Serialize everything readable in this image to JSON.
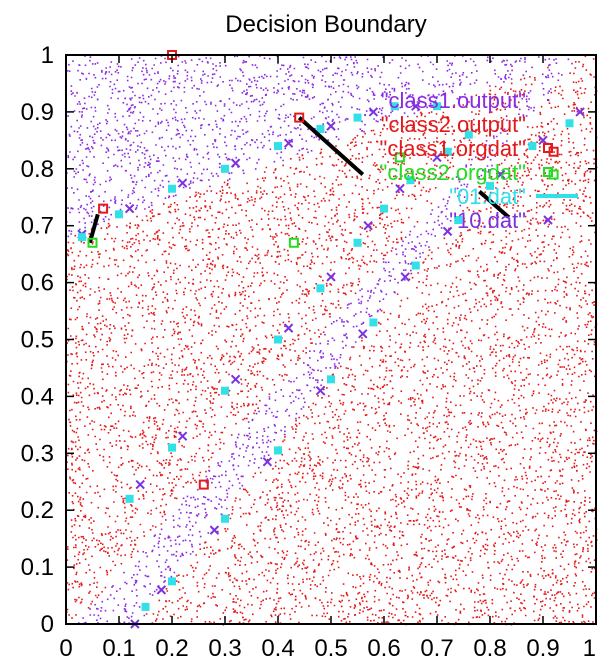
{
  "chart_data": {
    "type": "scatter",
    "title": "Decision Boundary",
    "xlabel": "",
    "ylabel": "",
    "xlim": [
      0,
      1
    ],
    "ylim": [
      0,
      1
    ],
    "x_ticks": [
      "0",
      "0.1",
      "0.2",
      "0.3",
      "0.4",
      "0.5",
      "0.6",
      "0.7",
      "0.8",
      "0.9",
      "1"
    ],
    "y_ticks": [
      "0",
      "0.1",
      "0.2",
      "0.3",
      "0.4",
      "0.5",
      "0.6",
      "0.7",
      "0.8",
      "0.9",
      "1"
    ],
    "grid": false,
    "legend_placement": "top-right",
    "colors": {
      "class1_output": "#8a2be2",
      "class2_output": "#e31a1c",
      "class1_orgdat": "#e31a1c",
      "class2_orgdat": "#22dd22",
      "boundary_01": "#33e0e8",
      "boundary_10": "#7b33e0",
      "segment": "#000000"
    },
    "series": [
      {
        "name": "\"class1.output\"",
        "kind": "region-dots",
        "region": "above upper boundary and right of lower boundary"
      },
      {
        "name": "\"class2.output\"",
        "kind": "region-dots",
        "region": "below upper boundary and left of the diagonal band"
      },
      {
        "name": "\"class1.orgdat\"",
        "kind": "markers",
        "points": [
          [
            0.2,
            1.0
          ],
          [
            0.07,
            0.73
          ],
          [
            0.44,
            0.89
          ],
          [
            0.92,
            0.83
          ],
          [
            0.26,
            0.245
          ]
        ]
      },
      {
        "name": "\"class2.orgdat\"",
        "kind": "markers",
        "points": [
          [
            0.05,
            0.67
          ],
          [
            0.43,
            0.67
          ],
          [
            0.63,
            0.82
          ],
          [
            0.92,
            0.79
          ]
        ]
      },
      {
        "name": "\"01.dat\"",
        "kind": "boundary",
        "points": [
          [
            0.03,
            0.68
          ],
          [
            0.1,
            0.72
          ],
          [
            0.2,
            0.765
          ],
          [
            0.3,
            0.8
          ],
          [
            0.4,
            0.84
          ],
          [
            0.48,
            0.87
          ],
          [
            0.55,
            0.89
          ],
          [
            0.62,
            0.91
          ],
          [
            0.7,
            0.91
          ],
          [
            0.12,
            0.22
          ],
          [
            0.2,
            0.31
          ],
          [
            0.3,
            0.41
          ],
          [
            0.4,
            0.5
          ],
          [
            0.48,
            0.59
          ],
          [
            0.55,
            0.67
          ],
          [
            0.6,
            0.73
          ],
          [
            0.65,
            0.78
          ],
          [
            0.72,
            0.83
          ],
          [
            0.76,
            0.86
          ],
          [
            0.15,
            0.03
          ],
          [
            0.2,
            0.075
          ],
          [
            0.3,
            0.185
          ],
          [
            0.4,
            0.305
          ],
          [
            0.5,
            0.43
          ],
          [
            0.58,
            0.53
          ],
          [
            0.66,
            0.63
          ],
          [
            0.74,
            0.71
          ],
          [
            0.8,
            0.77
          ],
          [
            0.88,
            0.84
          ],
          [
            0.95,
            0.88
          ]
        ]
      },
      {
        "name": "\"10.dat\"",
        "kind": "boundary",
        "points": [
          [
            0.03,
            0.685
          ],
          [
            0.12,
            0.73
          ],
          [
            0.22,
            0.775
          ],
          [
            0.32,
            0.81
          ],
          [
            0.42,
            0.845
          ],
          [
            0.5,
            0.875
          ],
          [
            0.58,
            0.9
          ],
          [
            0.66,
            0.91
          ],
          [
            0.14,
            0.245
          ],
          [
            0.22,
            0.33
          ],
          [
            0.32,
            0.43
          ],
          [
            0.42,
            0.52
          ],
          [
            0.5,
            0.61
          ],
          [
            0.57,
            0.7
          ],
          [
            0.63,
            0.765
          ],
          [
            0.7,
            0.82
          ],
          [
            0.13,
            0.0
          ],
          [
            0.18,
            0.06
          ],
          [
            0.28,
            0.165
          ],
          [
            0.38,
            0.285
          ],
          [
            0.48,
            0.41
          ],
          [
            0.56,
            0.51
          ],
          [
            0.64,
            0.61
          ],
          [
            0.72,
            0.69
          ],
          [
            0.82,
            0.79
          ],
          [
            0.9,
            0.85
          ],
          [
            0.97,
            0.9
          ]
        ]
      }
    ],
    "segments": [
      [
        [
          0.045,
          0.67
        ],
        [
          0.06,
          0.72
        ]
      ],
      [
        [
          0.44,
          0.89
        ],
        [
          0.56,
          0.79
        ]
      ],
      [
        [
          0.78,
          0.76
        ],
        [
          0.835,
          0.715
        ]
      ]
    ]
  }
}
